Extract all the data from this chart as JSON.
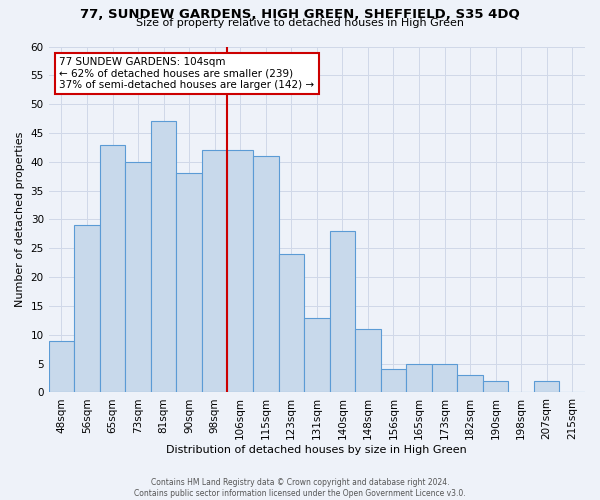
{
  "title": "77, SUNDEW GARDENS, HIGH GREEN, SHEFFIELD, S35 4DQ",
  "subtitle": "Size of property relative to detached houses in High Green",
  "xlabel": "Distribution of detached houses by size in High Green",
  "ylabel": "Number of detached properties",
  "categories": [
    "48sqm",
    "56sqm",
    "65sqm",
    "73sqm",
    "81sqm",
    "90sqm",
    "98sqm",
    "106sqm",
    "115sqm",
    "123sqm",
    "131sqm",
    "140sqm",
    "148sqm",
    "156sqm",
    "165sqm",
    "173sqm",
    "182sqm",
    "190sqm",
    "198sqm",
    "207sqm",
    "215sqm"
  ],
  "values": [
    9,
    29,
    43,
    40,
    47,
    38,
    42,
    42,
    41,
    24,
    13,
    28,
    11,
    4,
    5,
    5,
    3,
    2,
    0,
    2,
    0
  ],
  "bar_color": "#c8d9eb",
  "bar_edge_color": "#5b9bd5",
  "vline_color": "#cc0000",
  "annotation_text": "77 SUNDEW GARDENS: 104sqm\n← 62% of detached houses are smaller (239)\n37% of semi-detached houses are larger (142) →",
  "annotation_box_color": "#ffffff",
  "annotation_box_edge_color": "#cc0000",
  "ylim": [
    0,
    60
  ],
  "yticks": [
    0,
    5,
    10,
    15,
    20,
    25,
    30,
    35,
    40,
    45,
    50,
    55,
    60
  ],
  "grid_color": "#d0d8e8",
  "footer1": "Contains HM Land Registry data © Crown copyright and database right 2024.",
  "footer2": "Contains public sector information licensed under the Open Government Licence v3.0.",
  "bg_color": "#eef2f9"
}
